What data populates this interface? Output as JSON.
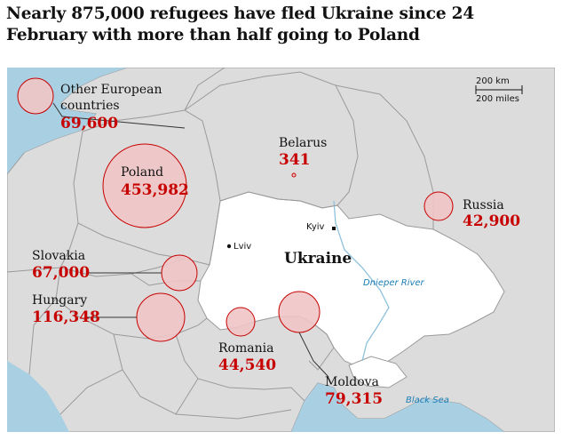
{
  "headline": "Nearly 875,000 refugees have fled Ukraine since 24 February with more than half going to Poland",
  "colors": {
    "sea": "#a9cfe3",
    "land": "#dcdcdc",
    "ukraine": "#ffffff",
    "borders": "#9a9a9a",
    "bubble_fill": "#f0c5c5",
    "bubble_stroke": "#c70000",
    "value_text": "#c70000"
  },
  "countries": [
    {
      "key": "poland",
      "name": "Poland",
      "value": "453,982",
      "refugees": 453982
    },
    {
      "key": "hungary",
      "name": "Hungary",
      "value": "116,348",
      "refugees": 116348
    },
    {
      "key": "moldova",
      "name": "Moldova",
      "value": "79,315",
      "refugees": 79315
    },
    {
      "key": "other",
      "name_line1": "Other European",
      "name_line2": "countries",
      "value": "69,600",
      "refugees": 69600
    },
    {
      "key": "slovakia",
      "name": "Slovakia",
      "value": "67,000",
      "refugees": 67000
    },
    {
      "key": "romania",
      "name": "Romania",
      "value": "44,540",
      "refugees": 44540
    },
    {
      "key": "russia",
      "name": "Russia",
      "value": "42,900",
      "refugees": 42900
    },
    {
      "key": "belarus",
      "name": "Belarus",
      "value": "341",
      "refugees": 341
    }
  ],
  "places": {
    "ukraine": "Ukraine",
    "kyiv": "Kyiv",
    "lviv": "Lviv",
    "river": "Dnieper River",
    "sea": "Black Sea"
  },
  "scale": {
    "km": "200 km",
    "miles": "200 miles"
  }
}
